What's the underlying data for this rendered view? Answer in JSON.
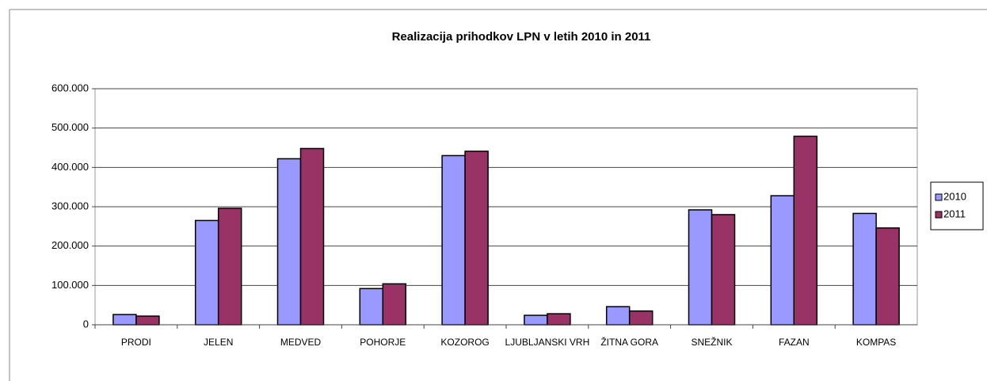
{
  "chart_data": {
    "type": "bar",
    "title": "Realizacija prihodkov LPN v letih 2010 in 2011",
    "categories": [
      "PRODI",
      "JELEN",
      "MEDVED",
      "POHORJE",
      "KOZOROG",
      "LJUBLJANSKI VRH",
      "ŽITNA GORA",
      "SNEŽNIK",
      "FAZAN",
      "KOMPAS"
    ],
    "series": [
      {
        "name": "2010",
        "color": "#9999ff",
        "values": [
          26000,
          265000,
          422000,
          92000,
          430000,
          24000,
          46000,
          292000,
          328000,
          283000
        ]
      },
      {
        "name": "2011",
        "color": "#993366",
        "values": [
          22000,
          296000,
          448000,
          104000,
          441000,
          28000,
          35000,
          280000,
          479000,
          246000
        ]
      }
    ],
    "ylim": [
      0,
      600000
    ],
    "yticks": [
      0,
      {
        "value": 100000,
        "label": "100.000"
      },
      {
        "value": 200000,
        "label": "200.000"
      },
      {
        "value": 300000,
        "label": "300.000"
      },
      {
        "value": 400000,
        "label": "400.000"
      },
      {
        "value": 500000,
        "label": "500.000"
      },
      {
        "value": 600000,
        "label": "600.000"
      }
    ],
    "grid": true,
    "legend": "right"
  }
}
